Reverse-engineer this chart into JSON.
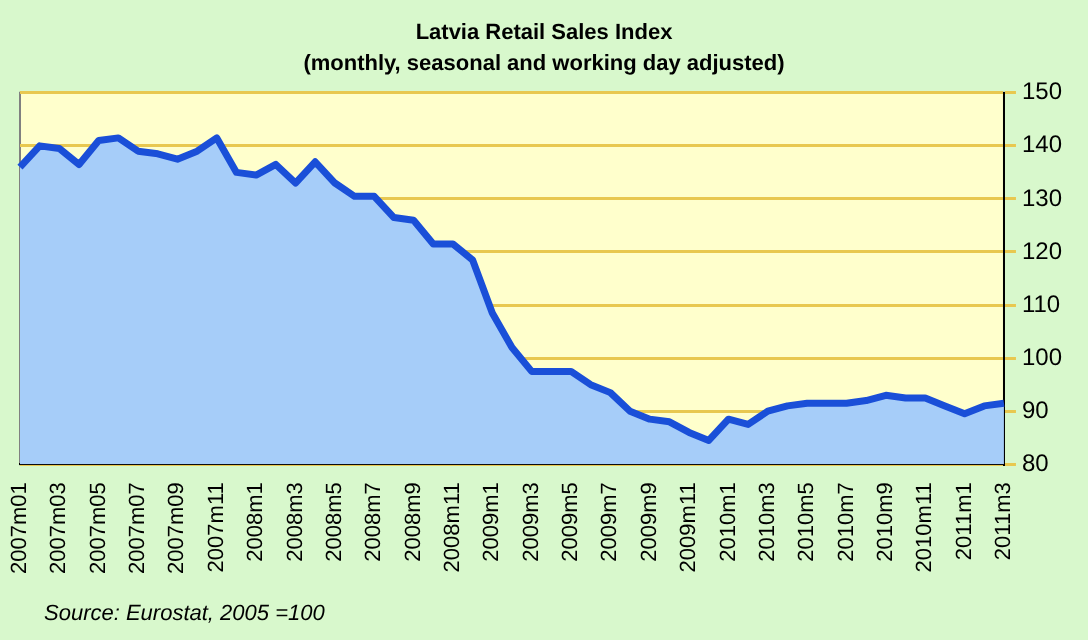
{
  "chart_data": {
    "type": "area",
    "title": "Latvia Retail Sales Index",
    "subtitle": "(monthly, seasonal and working day adjusted)",
    "categories": [
      "2007m01",
      null,
      "2007m03",
      null,
      "2007m05",
      null,
      "2007m07",
      null,
      "2007m09",
      null,
      "2007m11",
      null,
      "2008m1",
      null,
      "2008m3",
      null,
      "2008m5",
      null,
      "2008m7",
      null,
      "2008m9",
      null,
      "2008m11",
      null,
      "2009m1",
      null,
      "2009m3",
      null,
      "2009m5",
      null,
      "2009m7",
      null,
      "2009m9",
      null,
      "2009m11",
      null,
      "2010m1",
      null,
      "2010m3",
      null,
      "2010m5",
      null,
      "2010m7",
      null,
      "2010m9",
      null,
      "2010m11",
      null,
      "2011m1",
      null,
      "2011m3"
    ],
    "series": [
      {
        "color": "#1a4fd8",
        "values": [
          136,
          140,
          139.5,
          136.5,
          141,
          141.5,
          139,
          138.5,
          137.5,
          139,
          141.5,
          135,
          134.5,
          136.5,
          133,
          137,
          133,
          130.5,
          130.5,
          126.5,
          126,
          121.5,
          121.5,
          118.5,
          108.5,
          102,
          97.5,
          97.5,
          97.5,
          95,
          93.5,
          90,
          88.5,
          88,
          86,
          84.5,
          88.5,
          87.5,
          90,
          91,
          91.5,
          91.5,
          91.5,
          92,
          93,
          92.5,
          92.5,
          91,
          89.5,
          91,
          91.5
        ]
      }
    ],
    "ylim": [
      80,
      150
    ],
    "yticks": [
      80,
      90,
      100,
      110,
      120,
      130,
      140,
      150
    ],
    "grid": "y",
    "legend": false,
    "annotations": [
      "Source: Eurostat, 2005 =100"
    ]
  }
}
